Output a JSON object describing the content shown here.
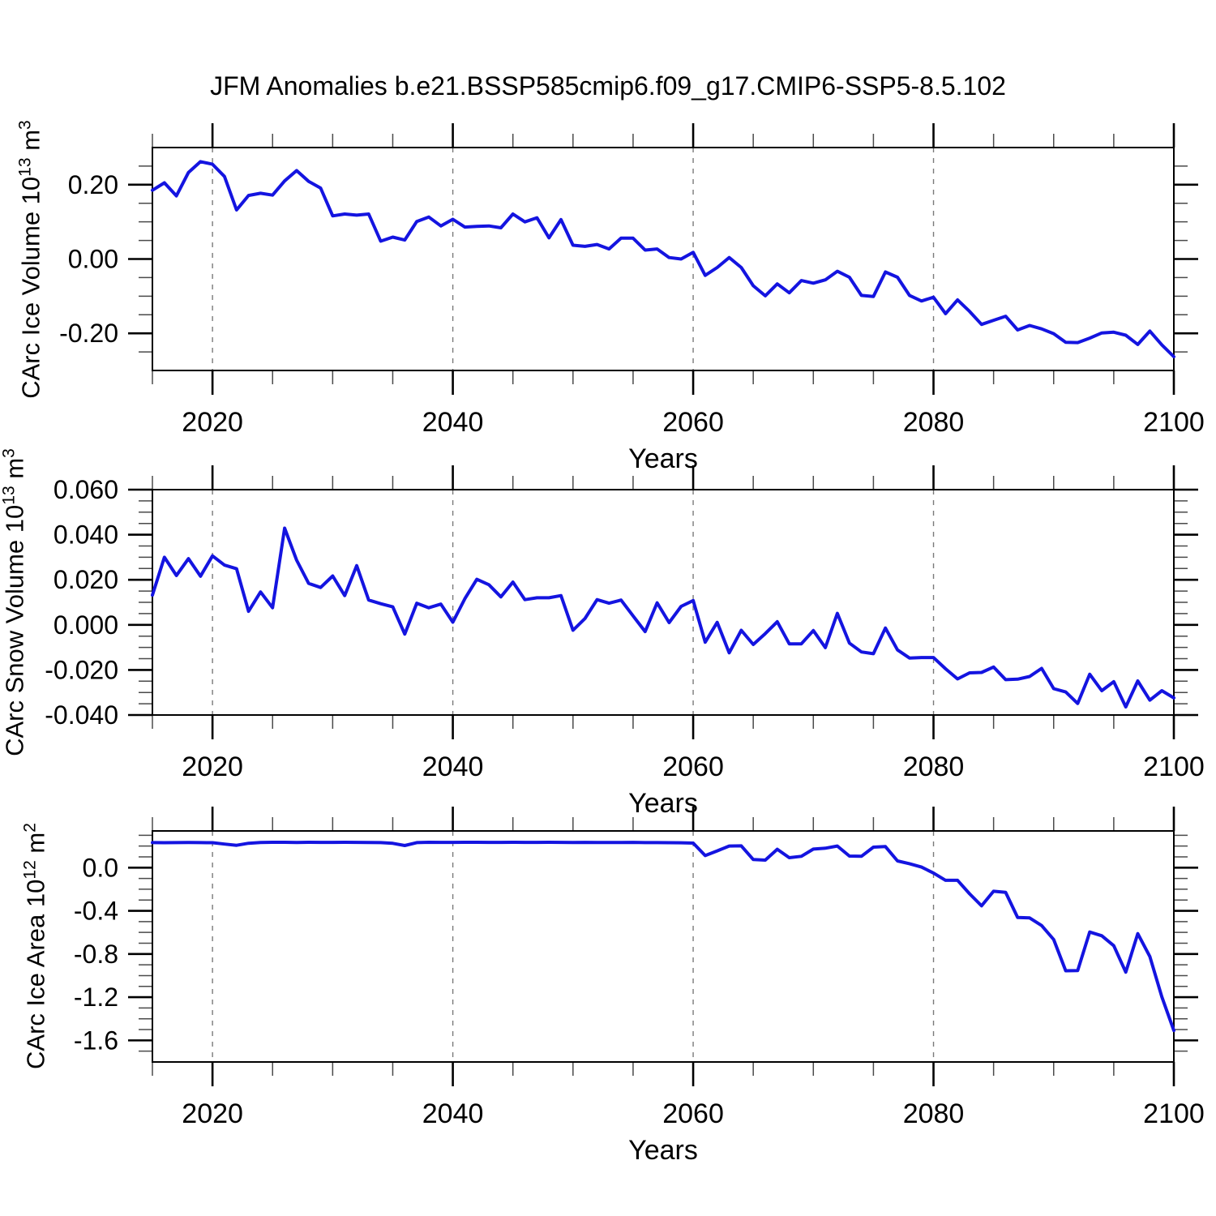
{
  "figure": {
    "background": "#ffffff",
    "line_color": "#1414e0",
    "grid_color": "#7a7a7a",
    "axis_color": "#000000"
  },
  "chart_data": {
    "type": "line",
    "title": "JFM Anomalies b.e21.BSSP585cmip6.f09_g17.CMIP6-SSP5-8.5.102",
    "x_label": "Years",
    "legend": "none",
    "grid": "vertical-dashed",
    "x_range": [
      2015,
      2100
    ],
    "x_ticks": [
      2020,
      2040,
      2060,
      2080,
      2100
    ],
    "x_tick_labels": [
      "2020",
      "2040",
      "2060",
      "2080",
      "2100"
    ],
    "x_minor_step": 5,
    "grid_years": [
      2020,
      2040,
      2060,
      2080
    ],
    "x_years": [
      2015,
      2016,
      2017,
      2018,
      2019,
      2020,
      2021,
      2022,
      2023,
      2024,
      2025,
      2026,
      2027,
      2028,
      2029,
      2030,
      2031,
      2032,
      2033,
      2034,
      2035,
      2036,
      2037,
      2038,
      2039,
      2040,
      2041,
      2042,
      2043,
      2044,
      2045,
      2046,
      2047,
      2048,
      2049,
      2050,
      2051,
      2052,
      2053,
      2054,
      2055,
      2056,
      2057,
      2058,
      2059,
      2060,
      2061,
      2062,
      2063,
      2064,
      2065,
      2066,
      2067,
      2068,
      2069,
      2070,
      2071,
      2072,
      2073,
      2074,
      2075,
      2076,
      2077,
      2078,
      2079,
      2080,
      2081,
      2082,
      2083,
      2084,
      2085,
      2086,
      2087,
      2088,
      2089,
      2090,
      2091,
      2092,
      2093,
      2094,
      2095,
      2096,
      2097,
      2098,
      2099,
      2100
    ],
    "panels": [
      {
        "name": "ice-volume",
        "ylabel_text": "CArc Ice Volume 10^13 m^3",
        "ylabel_prefix": "CArc Ice Volume 10",
        "ylabel_sup_exp": "13",
        "ylabel_unit": " m",
        "ylabel_unit_sup": "3",
        "ylim": [
          -0.3,
          0.3
        ],
        "yticks": [
          {
            "v": 0.2,
            "label": "0.20"
          },
          {
            "v": 0.0,
            "label": "0.00"
          },
          {
            "v": -0.2,
            "label": "-0.20"
          }
        ],
        "y_minor_step": 0.05,
        "values": [
          0.185,
          0.205,
          0.17,
          0.233,
          0.262,
          0.255,
          0.222,
          0.132,
          0.171,
          0.177,
          0.172,
          0.21,
          0.238,
          0.209,
          0.191,
          0.116,
          0.121,
          0.118,
          0.121,
          0.048,
          0.059,
          0.051,
          0.101,
          0.113,
          0.089,
          0.107,
          0.086,
          0.088,
          0.089,
          0.084,
          0.121,
          0.1,
          0.111,
          0.057,
          0.106,
          0.037,
          0.034,
          0.039,
          0.027,
          0.056,
          0.056,
          0.024,
          0.027,
          0.004,
          0.0,
          0.018,
          -0.044,
          -0.023,
          0.004,
          -0.023,
          -0.072,
          -0.099,
          -0.067,
          -0.091,
          -0.058,
          -0.065,
          -0.056,
          -0.033,
          -0.049,
          -0.098,
          -0.101,
          -0.035,
          -0.049,
          -0.098,
          -0.113,
          -0.103,
          -0.147,
          -0.11,
          -0.141,
          -0.176,
          -0.165,
          -0.154,
          -0.191,
          -0.179,
          -0.188,
          -0.201,
          -0.224,
          -0.225,
          -0.213,
          -0.199,
          -0.197,
          -0.205,
          -0.23,
          -0.194,
          -0.231,
          -0.263
        ]
      },
      {
        "name": "snow-volume",
        "ylabel_text": "CArc Snow Volume 10^13 m^3",
        "ylabel_prefix": "CArc Snow Volume 10",
        "ylabel_sup_exp": "13",
        "ylabel_unit": " m",
        "ylabel_unit_sup": "3",
        "ylim": [
          -0.04,
          0.06
        ],
        "yticks": [
          {
            "v": 0.06,
            "label": "0.060"
          },
          {
            "v": 0.04,
            "label": "0.040"
          },
          {
            "v": 0.02,
            "label": "0.020"
          },
          {
            "v": 0.0,
            "label": "0.000"
          },
          {
            "v": -0.02,
            "label": "-0.020"
          },
          {
            "v": -0.04,
            "label": "-0.040"
          }
        ],
        "y_minor_step": 0.005,
        "values": [
          0.0132,
          0.03,
          0.0219,
          0.0294,
          0.0216,
          0.0306,
          0.0265,
          0.0249,
          0.006,
          0.0146,
          0.0076,
          0.0429,
          0.0287,
          0.0184,
          0.0166,
          0.0217,
          0.013,
          0.0263,
          0.011,
          0.0094,
          0.008,
          -0.0041,
          0.0096,
          0.0076,
          0.0092,
          0.0012,
          0.0116,
          0.0202,
          0.0178,
          0.0124,
          0.019,
          0.0112,
          0.012,
          0.012,
          0.013,
          -0.0024,
          0.0028,
          0.0112,
          0.0096,
          0.011,
          0.004,
          -0.003,
          0.0098,
          0.001,
          0.0082,
          0.0108,
          -0.0077,
          0.0011,
          -0.0124,
          -0.0024,
          -0.0087,
          -0.0039,
          0.0014,
          -0.0084,
          -0.0084,
          -0.0025,
          -0.0101,
          0.0051,
          -0.0081,
          -0.012,
          -0.0128,
          -0.0014,
          -0.0111,
          -0.0147,
          -0.0145,
          -0.0145,
          -0.0195,
          -0.024,
          -0.0213,
          -0.0211,
          -0.0187,
          -0.0243,
          -0.0241,
          -0.0229,
          -0.0193,
          -0.0283,
          -0.0298,
          -0.0349,
          -0.0219,
          -0.0292,
          -0.0252,
          -0.0364,
          -0.0249,
          -0.0334,
          -0.0292,
          -0.0324
        ]
      },
      {
        "name": "ice-area",
        "ylabel_text": "CArc Ice Area 10^12 m^2",
        "ylabel_prefix": "CArc Ice Area 10",
        "ylabel_sup_exp": "12",
        "ylabel_unit": " m",
        "ylabel_unit_sup": "2",
        "ylim": [
          -1.8,
          0.34
        ],
        "yticks": [
          {
            "v": 0.0,
            "label": "0.0"
          },
          {
            "v": -0.4,
            "label": "-0.4"
          },
          {
            "v": -0.8,
            "label": "-0.8"
          },
          {
            "v": -1.2,
            "label": "-1.2"
          },
          {
            "v": -1.6,
            "label": "-1.6"
          }
        ],
        "y_minor_step": 0.1,
        "values": [
          0.232,
          0.231,
          0.232,
          0.233,
          0.232,
          0.231,
          0.218,
          0.207,
          0.226,
          0.233,
          0.235,
          0.235,
          0.233,
          0.235,
          0.234,
          0.234,
          0.235,
          0.234,
          0.233,
          0.232,
          0.225,
          0.205,
          0.232,
          0.235,
          0.234,
          0.234,
          0.235,
          0.235,
          0.234,
          0.234,
          0.235,
          0.234,
          0.234,
          0.235,
          0.234,
          0.233,
          0.234,
          0.233,
          0.233,
          0.233,
          0.234,
          0.232,
          0.232,
          0.231,
          0.23,
          0.227,
          0.112,
          0.155,
          0.2,
          0.202,
          0.075,
          0.07,
          0.17,
          0.092,
          0.105,
          0.172,
          0.18,
          0.2,
          0.107,
          0.105,
          0.19,
          0.195,
          0.062,
          0.037,
          0.005,
          -0.05,
          -0.117,
          -0.117,
          -0.242,
          -0.354,
          -0.219,
          -0.229,
          -0.461,
          -0.466,
          -0.536,
          -0.666,
          -0.955,
          -0.953,
          -0.596,
          -0.631,
          -0.723,
          -0.968,
          -0.611,
          -0.823,
          -1.197,
          -1.509
        ]
      }
    ]
  }
}
